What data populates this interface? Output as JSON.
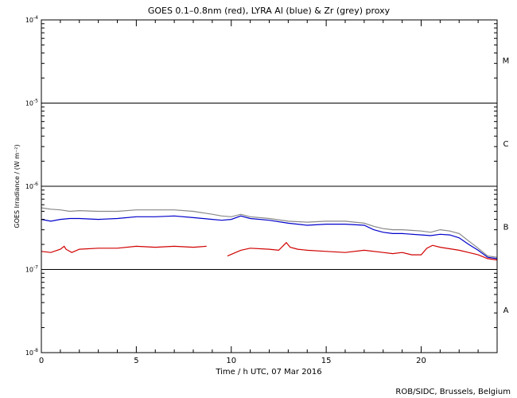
{
  "chart_data": {
    "type": "line",
    "title": "GOES 0.1–0.8nm (red), LYRA Al (blue) & Zr (grey) proxy",
    "xlabel": "Time / h UTC, 07 Mar 2016",
    "ylabel": "GOES Irradiance / (W m⁻²)",
    "xlim": [
      0,
      24
    ],
    "ylim": [
      1e-08,
      0.0001
    ],
    "yscale": "log",
    "x_ticks": [
      0,
      5,
      10,
      15,
      20
    ],
    "x_tick_labels": [
      "0",
      "5",
      "10",
      "15",
      "20"
    ],
    "y_ticks": [
      1e-08,
      1e-07,
      1e-06,
      1e-05,
      0.0001
    ],
    "y_tick_labels": [
      {
        "base": "10",
        "exp": "-8"
      },
      {
        "base": "10",
        "exp": "-7"
      },
      {
        "base": "10",
        "exp": "-6"
      },
      {
        "base": "10",
        "exp": "-5"
      },
      {
        "base": "10",
        "exp": "-4"
      }
    ],
    "flare_class_lines": [
      1e-07,
      1e-06,
      1e-05
    ],
    "flare_classes": [
      {
        "label": "A",
        "value": 3.2e-08
      },
      {
        "label": "B",
        "value": 3.2e-07
      },
      {
        "label": "C",
        "value": 3.2e-06
      },
      {
        "label": "M",
        "value": 3.2e-05
      }
    ],
    "grid": false,
    "series": [
      {
        "color": "#d00000",
        "x": [
          0,
          0.5,
          1.0,
          1.2,
          1.3,
          1.6,
          2.0,
          3.0,
          4.0,
          5.0,
          6.0,
          7.0,
          8.0,
          8.7,
          null,
          9.8,
          10.5,
          11.0,
          12.0,
          12.5,
          12.9,
          13.1,
          13.5,
          14.0,
          15.0,
          16.0,
          17.0,
          18.0,
          18.5,
          19.0,
          19.5,
          20.0,
          20.3,
          20.6,
          21.0,
          22.0,
          22.5,
          23.0,
          23.5,
          24.0
        ],
        "values": [
          1.65e-07,
          1.6e-07,
          1.75e-07,
          1.9e-07,
          1.75e-07,
          1.6e-07,
          1.75e-07,
          1.8e-07,
          1.8e-07,
          1.9e-07,
          1.85e-07,
          1.9e-07,
          1.85e-07,
          1.9e-07,
          null,
          1.45e-07,
          1.7e-07,
          1.8e-07,
          1.75e-07,
          1.7e-07,
          2.1e-07,
          1.85e-07,
          1.75e-07,
          1.7e-07,
          1.65e-07,
          1.6e-07,
          1.7e-07,
          1.6e-07,
          1.55e-07,
          1.6e-07,
          1.5e-07,
          1.5e-07,
          1.8e-07,
          1.95e-07,
          1.85e-07,
          1.7e-07,
          1.6e-07,
          1.5e-07,
          1.35e-07,
          1.3e-07
        ]
      },
      {
        "color": "#0000cc",
        "x": [
          0,
          0.5,
          1.0,
          1.5,
          2.0,
          3.0,
          4.0,
          5.0,
          6.0,
          7.0,
          8.0,
          9.0,
          9.5,
          10.0,
          10.5,
          11.0,
          12.0,
          13.0,
          14.0,
          15.0,
          16.0,
          17.0,
          17.5,
          18.0,
          18.5,
          19.0,
          20.0,
          20.5,
          21.0,
          21.5,
          22.0,
          22.5,
          23.0,
          23.5,
          24.0
        ],
        "values": [
          4e-07,
          3.8e-07,
          4e-07,
          4.1e-07,
          4.1e-07,
          4e-07,
          4.1e-07,
          4.3e-07,
          4.3e-07,
          4.4e-07,
          4.2e-07,
          4e-07,
          3.9e-07,
          4e-07,
          4.4e-07,
          4.1e-07,
          3.9e-07,
          3.6e-07,
          3.4e-07,
          3.5e-07,
          3.5e-07,
          3.4e-07,
          3e-07,
          2.8e-07,
          2.7e-07,
          2.7e-07,
          2.6e-07,
          2.55e-07,
          2.65e-07,
          2.6e-07,
          2.4e-07,
          2e-07,
          1.7e-07,
          1.4e-07,
          1.35e-07
        ]
      },
      {
        "color": "#888888",
        "x": [
          0,
          0.5,
          1.0,
          1.5,
          2.0,
          3.0,
          4.0,
          5.0,
          6.0,
          7.0,
          8.0,
          9.0,
          9.5,
          10.0,
          10.5,
          11.0,
          12.0,
          13.0,
          14.0,
          15.0,
          16.0,
          17.0,
          17.5,
          18.0,
          18.5,
          19.0,
          20.0,
          20.5,
          21.0,
          21.5,
          22.0,
          22.5,
          23.0,
          23.5,
          24.0
        ],
        "values": [
          5.5e-07,
          5.3e-07,
          5.2e-07,
          5e-07,
          5.1e-07,
          5e-07,
          5e-07,
          5.2e-07,
          5.2e-07,
          5.2e-07,
          5e-07,
          4.6e-07,
          4.4e-07,
          4.3e-07,
          4.6e-07,
          4.3e-07,
          4.1e-07,
          3.8e-07,
          3.7e-07,
          3.8e-07,
          3.8e-07,
          3.6e-07,
          3.3e-07,
          3.1e-07,
          3e-07,
          3e-07,
          2.9e-07,
          2.8e-07,
          3e-07,
          2.9e-07,
          2.7e-07,
          2.2e-07,
          1.8e-07,
          1.45e-07,
          1.4e-07
        ]
      }
    ]
  },
  "footer": {
    "credit": "ROB/SIDC, Brussels, Belgium"
  }
}
